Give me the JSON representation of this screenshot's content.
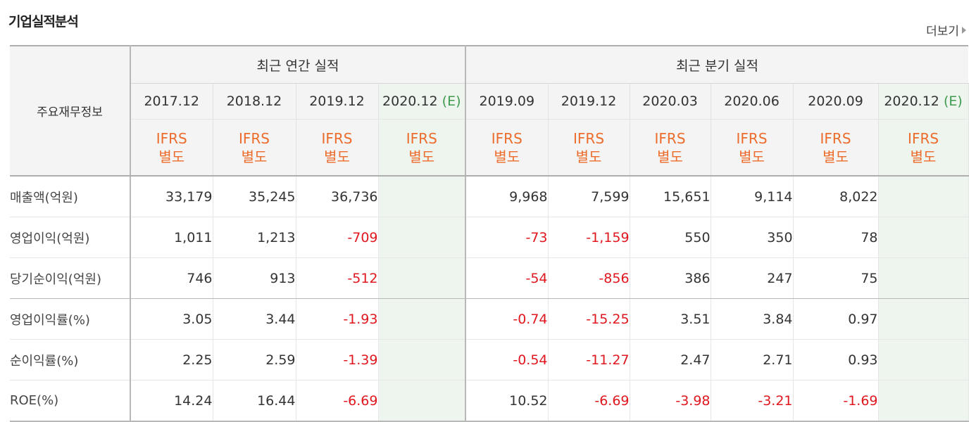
{
  "section": {
    "title": "기업실적분석",
    "more_label": "더보기"
  },
  "table": {
    "corner_label": "주요재무정보",
    "groups": {
      "annual": "최근 연간 실적",
      "quarterly": "최근 분기 실적"
    },
    "estimate_tag": "(E)",
    "annual_periods": [
      "2017.12",
      "2018.12",
      "2019.12",
      "2020.12"
    ],
    "quarter_periods": [
      "2019.09",
      "2019.12",
      "2020.03",
      "2020.06",
      "2020.09",
      "2020.12"
    ],
    "report_type": {
      "line1": "IFRS",
      "line2": "별도"
    },
    "rows": [
      {
        "label": "매출액(억원)",
        "annual": [
          "33,179",
          "35,245",
          "36,736",
          ""
        ],
        "quarterly": [
          "9,968",
          "7,599",
          "15,651",
          "9,114",
          "8,022",
          ""
        ]
      },
      {
        "label": "영업이익(억원)",
        "annual": [
          "1,011",
          "1,213",
          "-709",
          ""
        ],
        "quarterly": [
          "-73",
          "-1,159",
          "550",
          "350",
          "78",
          ""
        ]
      },
      {
        "label": "당기순이익(억원)",
        "annual": [
          "746",
          "913",
          "-512",
          ""
        ],
        "quarterly": [
          "-54",
          "-856",
          "386",
          "247",
          "75",
          ""
        ]
      },
      {
        "label": "영업이익률(%)",
        "annual": [
          "3.05",
          "3.44",
          "-1.93",
          ""
        ],
        "quarterly": [
          "-0.74",
          "-15.25",
          "3.51",
          "3.84",
          "0.97",
          ""
        ]
      },
      {
        "label": "순이익률(%)",
        "annual": [
          "2.25",
          "2.59",
          "-1.39",
          ""
        ],
        "quarterly": [
          "-0.54",
          "-11.27",
          "2.47",
          "2.71",
          "0.93",
          ""
        ]
      },
      {
        "label": "ROE(%)",
        "annual": [
          "14.24",
          "16.44",
          "-6.69",
          ""
        ],
        "quarterly": [
          "10.52",
          "-6.69",
          "-3.98",
          "-3.21",
          "-1.69",
          ""
        ]
      }
    ]
  },
  "colors": {
    "negative": "#e0171e",
    "ifrs": "#ec6c2c",
    "estimate": "#3f9a4e",
    "estimate_bg": "#eef5ef",
    "header_bg": "#f4f4f4"
  }
}
